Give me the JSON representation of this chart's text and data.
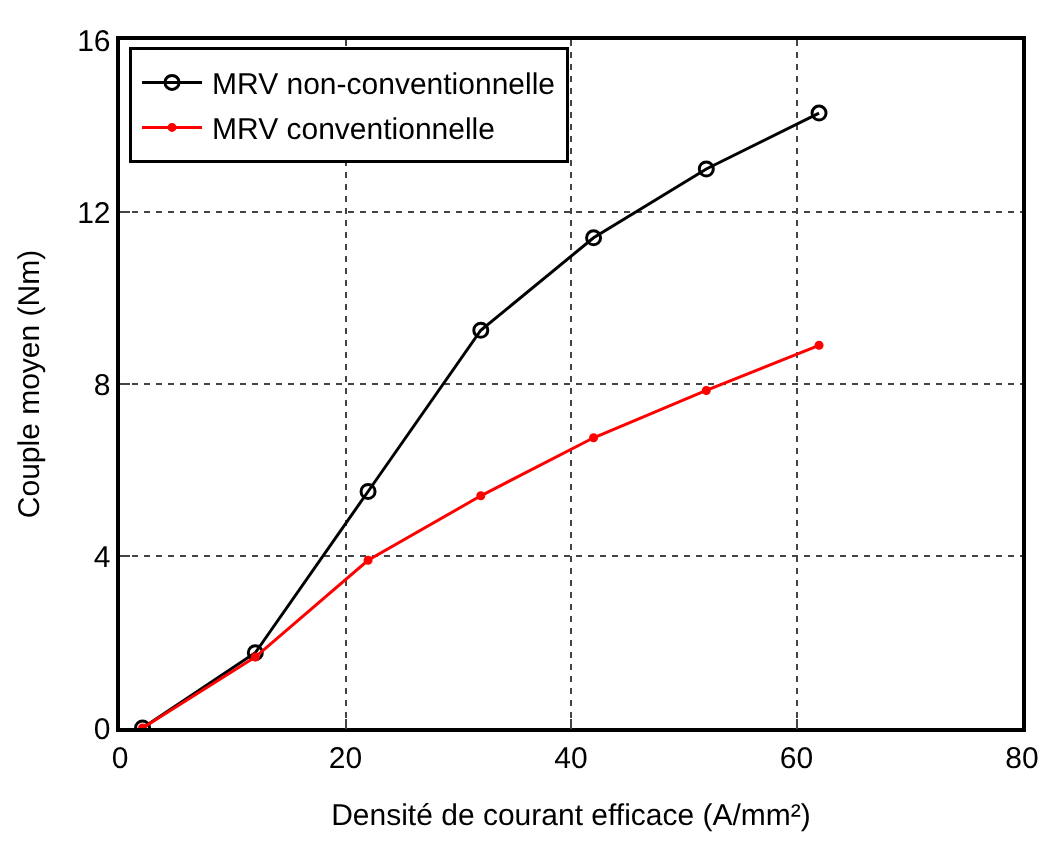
{
  "chart_data": {
    "type": "line",
    "xlabel": "Densité de courant efficace (A/mm²)",
    "ylabel": "Couple moyen (Nm)",
    "x": [
      2,
      12,
      22,
      32,
      42,
      52,
      62
    ],
    "series": [
      {
        "name": "MRV non-conventionnelle",
        "color": "#000000",
        "marker": "circle",
        "values": [
          0,
          1.75,
          5.5,
          9.25,
          11.4,
          13.0,
          14.3
        ]
      },
      {
        "name": "MRV conventionnelle",
        "color": "#ff0000",
        "marker": "dot",
        "values": [
          0,
          1.65,
          3.9,
          5.4,
          6.75,
          7.85,
          8.9
        ]
      }
    ],
    "xlim": [
      0,
      80
    ],
    "xticks": [
      0,
      20,
      40,
      60,
      80
    ],
    "ylim": [
      0,
      16
    ],
    "yticks": [
      0,
      4,
      8,
      12,
      16
    ],
    "grid": true,
    "legend": "top left",
    "line_style": "solid"
  }
}
